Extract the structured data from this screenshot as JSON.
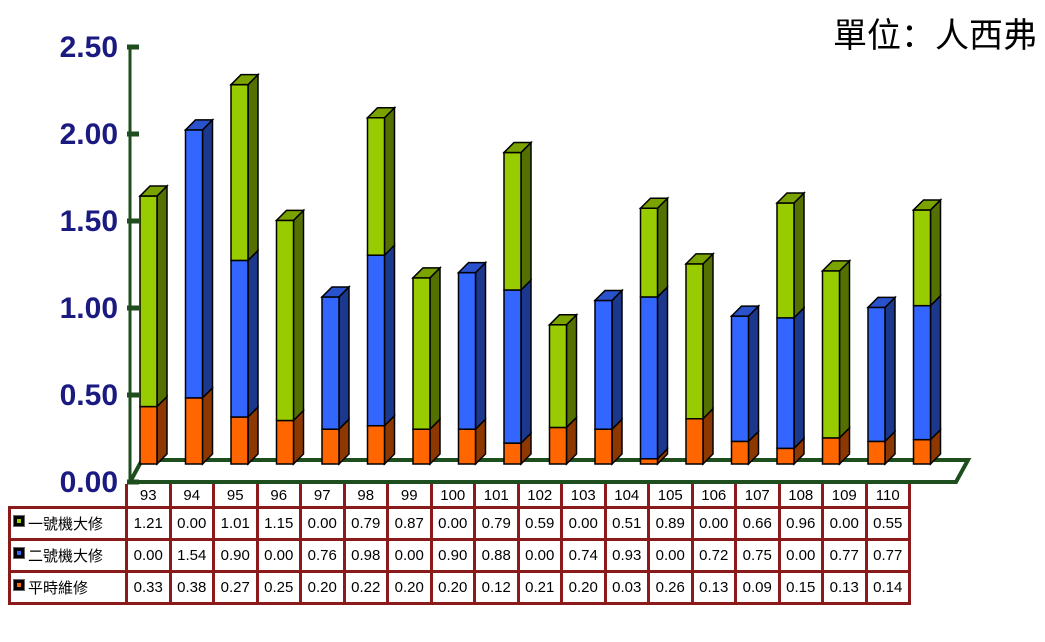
{
  "unit_label": "單位：人西弗",
  "colors": {
    "s1": "#99cc00",
    "s2": "#3366ff",
    "s3": "#ff6600",
    "axis": "#1e4d1e",
    "table_border": "#8b1a1a",
    "ytick": "#1a1a80"
  },
  "chart_data": {
    "type": "bar",
    "stacked": true,
    "categories": [
      "93",
      "94",
      "95",
      "96",
      "97",
      "98",
      "99",
      "100",
      "101",
      "102",
      "103",
      "104",
      "105",
      "106",
      "107",
      "108",
      "109",
      "110"
    ],
    "series": [
      {
        "name": "一號機大修",
        "values": [
          1.21,
          0.0,
          1.01,
          1.15,
          0.0,
          0.79,
          0.87,
          0.0,
          0.79,
          0.59,
          0.0,
          0.51,
          0.89,
          0.0,
          0.66,
          0.96,
          0.0,
          0.55
        ]
      },
      {
        "name": "二號機大修",
        "values": [
          0.0,
          1.54,
          0.9,
          0.0,
          0.76,
          0.98,
          0.0,
          0.9,
          0.88,
          0.0,
          0.74,
          0.93,
          0.0,
          0.72,
          0.75,
          0.0,
          0.77,
          0.77
        ]
      },
      {
        "name": "平時維修",
        "values": [
          0.33,
          0.38,
          0.27,
          0.25,
          0.2,
          0.22,
          0.2,
          0.2,
          0.12,
          0.21,
          0.2,
          0.03,
          0.26,
          0.13,
          0.09,
          0.15,
          0.13,
          0.14
        ]
      }
    ],
    "y_ticks": [
      "0.00",
      "0.50",
      "1.00",
      "1.50",
      "2.00",
      "2.50"
    ],
    "ylim": [
      0,
      2.5
    ]
  }
}
